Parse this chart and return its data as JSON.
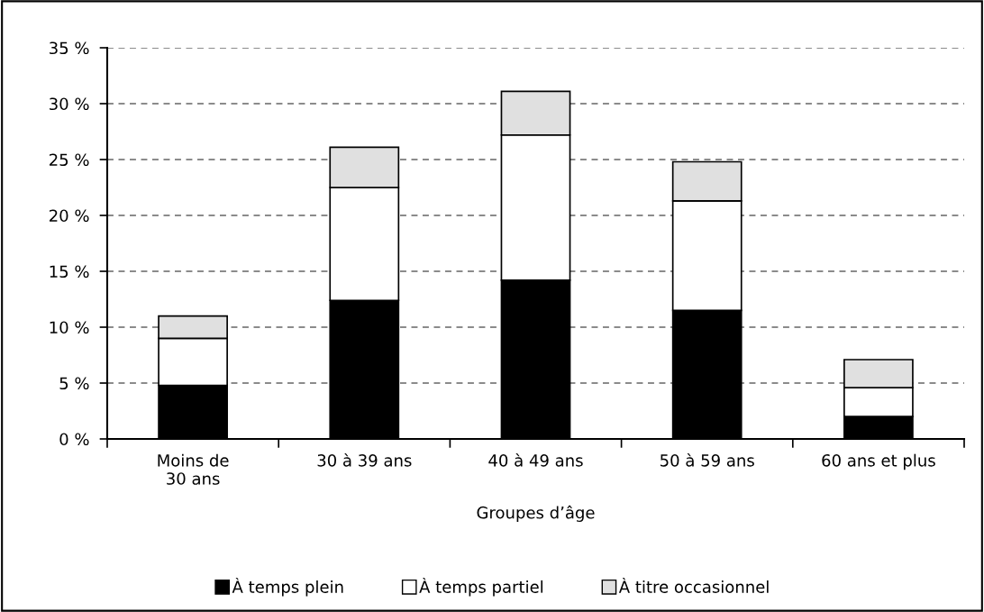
{
  "chart_data": {
    "type": "bar",
    "stacked": true,
    "xlabel": "Groupes d’âge",
    "categories": [
      "Moins de\n30 ans",
      "30 à 39 ans",
      "40 à 49 ans",
      "50 à 59 ans",
      "60 ans et plus"
    ],
    "series": [
      {
        "name": "À temps plein",
        "color": "#000000",
        "values": [
          4.8,
          12.4,
          14.2,
          11.5,
          2.0
        ]
      },
      {
        "name": "À temps partiel",
        "color": "#ffffff",
        "values": [
          4.2,
          10.1,
          13.0,
          9.8,
          2.6
        ]
      },
      {
        "name": "À titre occasionnel",
        "color": "#e0e0e0",
        "values": [
          2.0,
          3.6,
          3.9,
          3.5,
          2.5
        ]
      }
    ],
    "ylim": [
      0,
      35
    ],
    "yticks": [
      {
        "value": 0,
        "label": "0 %"
      },
      {
        "value": 5,
        "label": "5 %"
      },
      {
        "value": 10,
        "label": "10 %"
      },
      {
        "value": 15,
        "label": "15 %"
      },
      {
        "value": 20,
        "label": "20 %"
      },
      {
        "value": 25,
        "label": "25 %"
      },
      {
        "value": 30,
        "label": "30 %"
      },
      {
        "value": 35,
        "label": "35 %"
      }
    ],
    "grid": "y",
    "legend": "bottom"
  }
}
